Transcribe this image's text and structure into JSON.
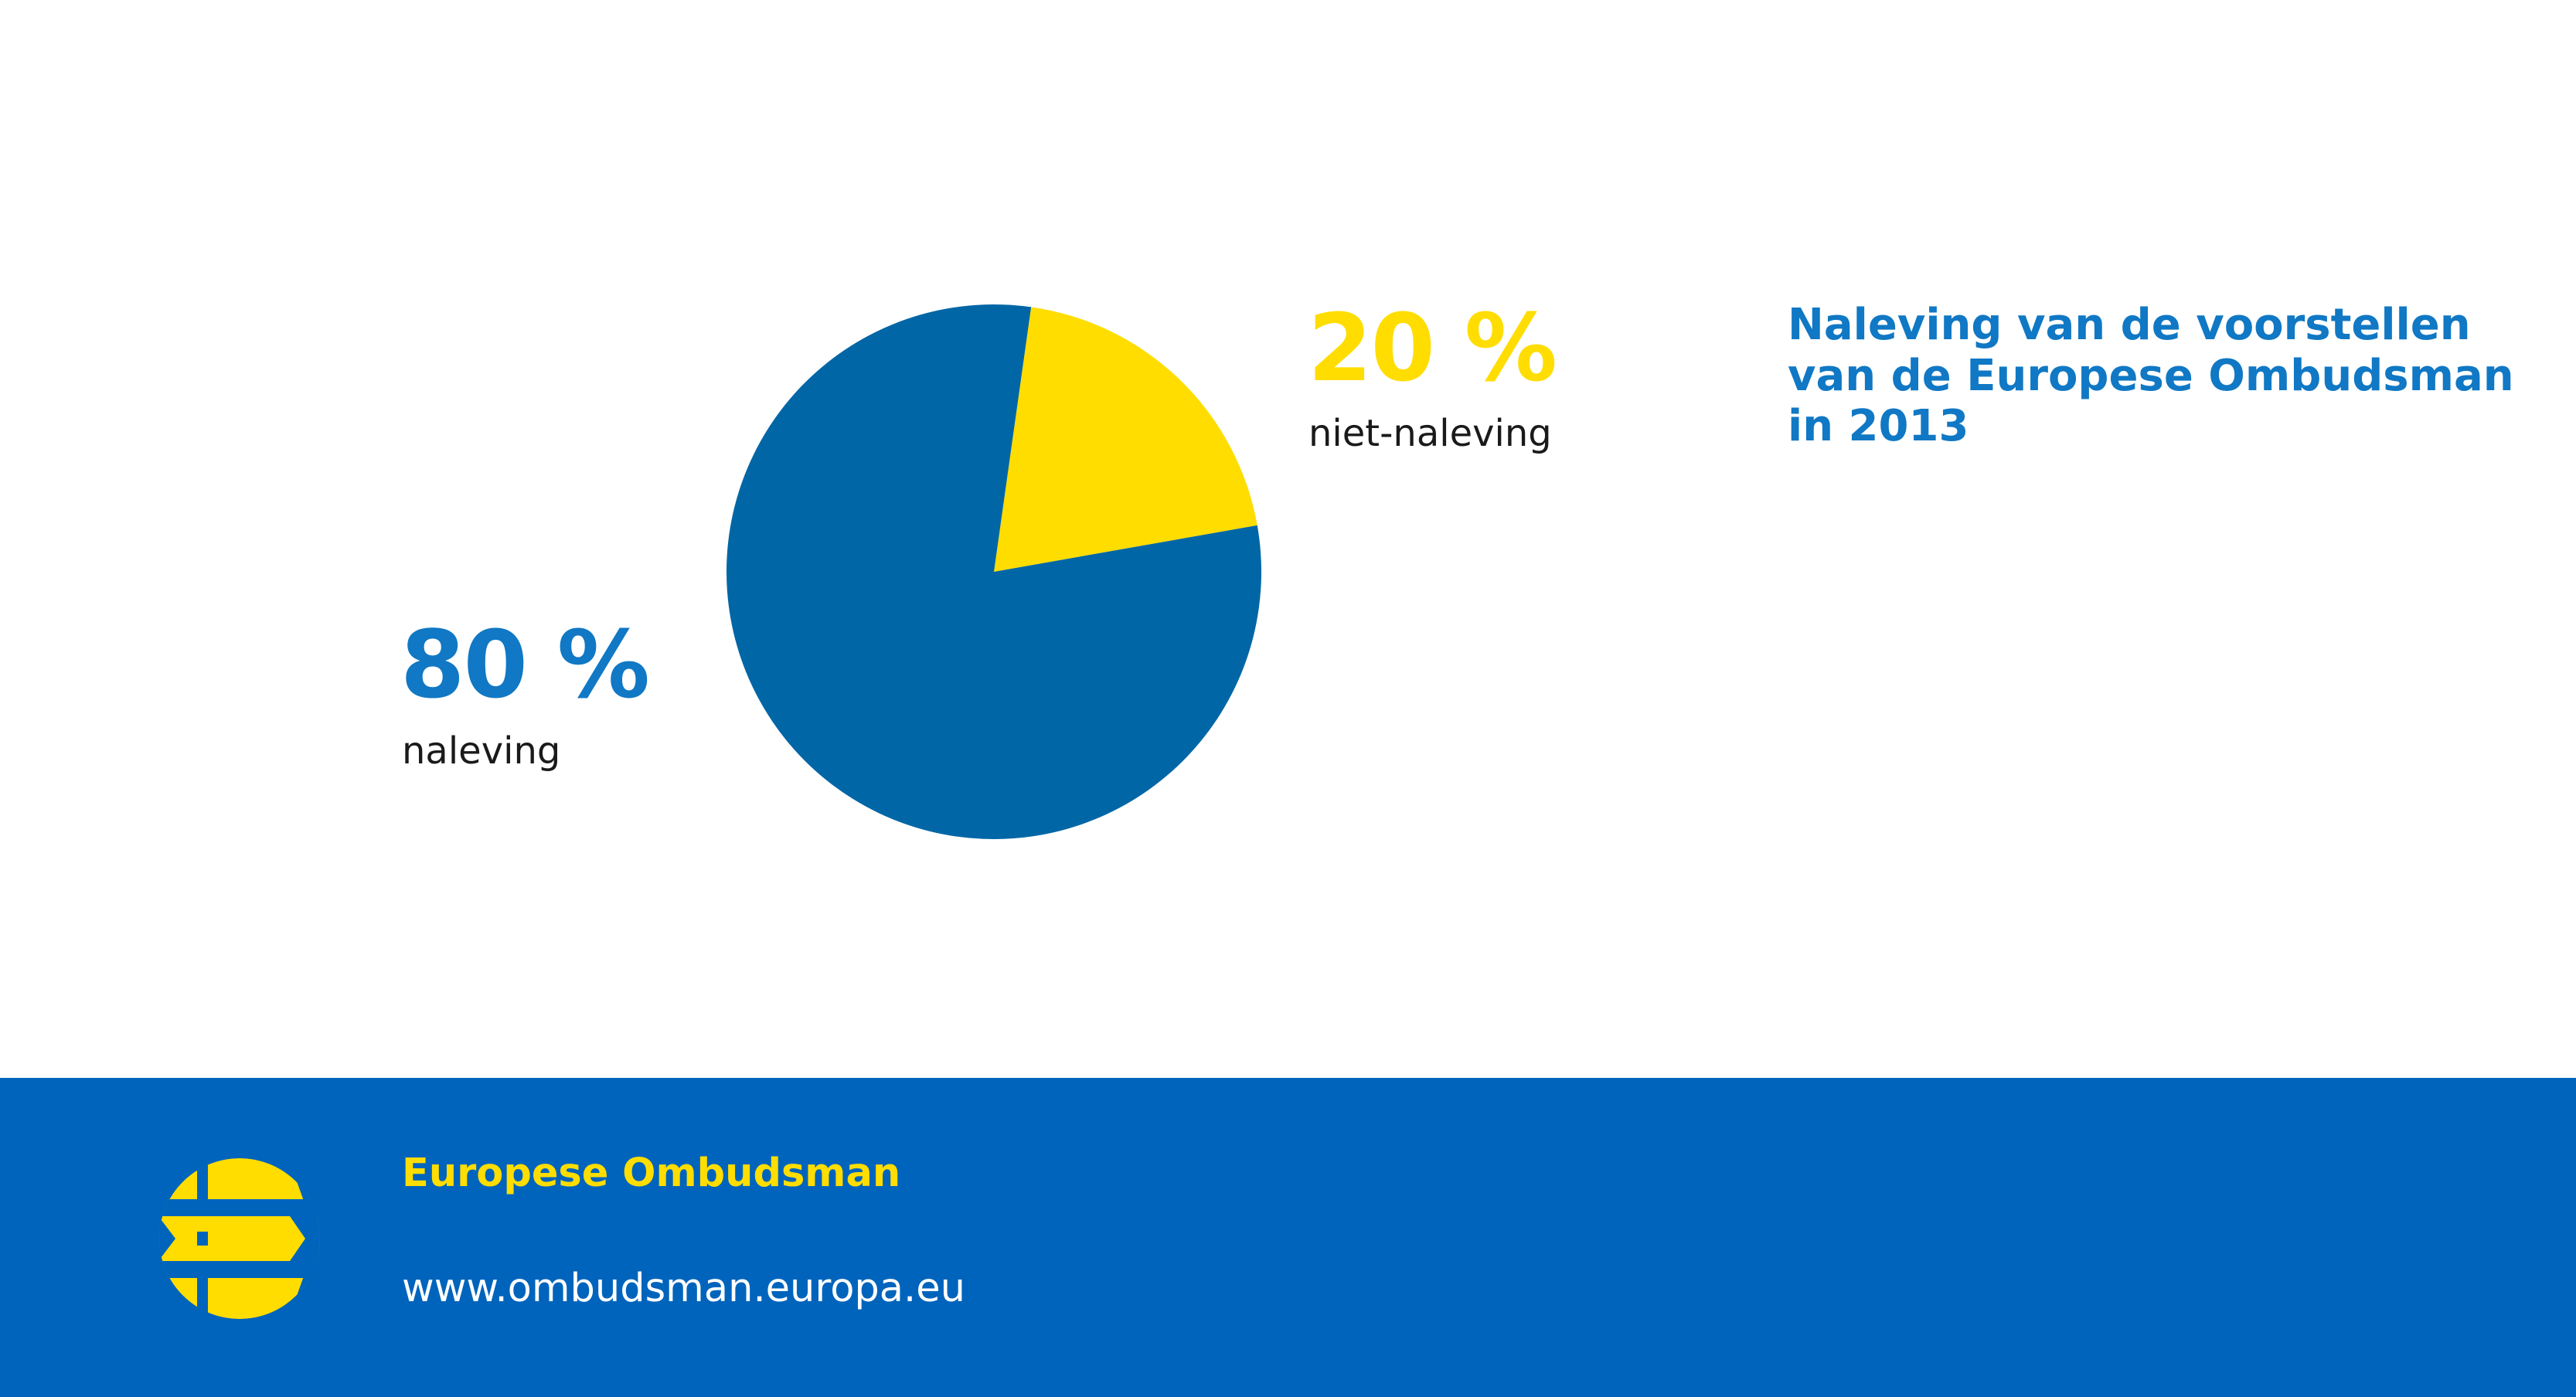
{
  "chart_data": {
    "type": "pie",
    "title": "Naleving van de voorstellen van de Europese Ombudsman in 2013",
    "slices": [
      {
        "label": "naleving",
        "value": 80,
        "display": "80 %",
        "color": "#0066a6"
      },
      {
        "label": "niet-naleving",
        "value": 20,
        "display": "20 %",
        "color": "#ffdd00"
      }
    ]
  },
  "colors": {
    "title": "#1078c4",
    "compliance_label": "#1078c4",
    "noncompliance_label": "#ffdd00",
    "footer_bg": "#0064bc",
    "footer_name": "#ffdd00",
    "logo": "#ffdd00"
  },
  "footer": {
    "name": "Europese Ombudsman",
    "url": "www.ombudsman.europa.eu",
    "logo_icon": "european-ombudsman-logo-icon"
  }
}
